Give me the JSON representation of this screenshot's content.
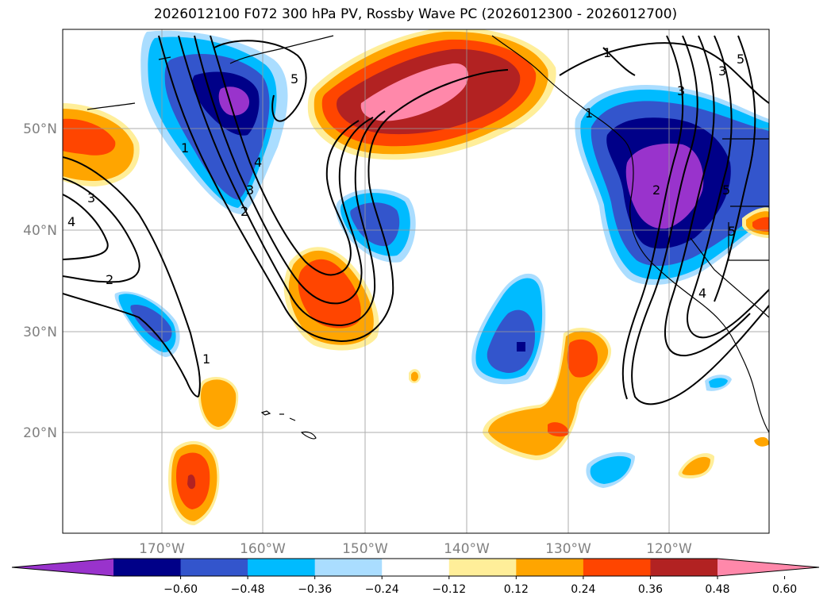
{
  "title": "2026012100 F072 300 hPa PV, Rossby Wave PC (2026012300 - 2026012700)",
  "map": {
    "region": "North Pacific",
    "projection_note": "lat-lon",
    "lon_ticks": [
      "170°W",
      "160°W",
      "150°W",
      "140°W",
      "130°W",
      "120°W"
    ],
    "lat_ticks": [
      "50°N",
      "40°N",
      "30°N",
      "20°N"
    ],
    "grid": true,
    "contour_labels": [
      "1",
      "1",
      "1",
      "2",
      "2",
      "3",
      "3",
      "3",
      "4",
      "4",
      "5",
      "5",
      "5",
      "1",
      "2",
      "3",
      "4",
      "5"
    ]
  },
  "colorbar": {
    "tick_labels": [
      "−0.60",
      "−0.48",
      "−0.36",
      "−0.24",
      "−0.12",
      "0.12",
      "0.24",
      "0.36",
      "0.48",
      "0.60"
    ],
    "colors": [
      "#9933cc",
      "#000088",
      "#3355cc",
      "#00bbff",
      "#aaddff",
      "#ffffff",
      "#ffee99",
      "#ffa500",
      "#ff4500",
      "#b22222",
      "#ff88aa"
    ],
    "extend": "both"
  }
}
